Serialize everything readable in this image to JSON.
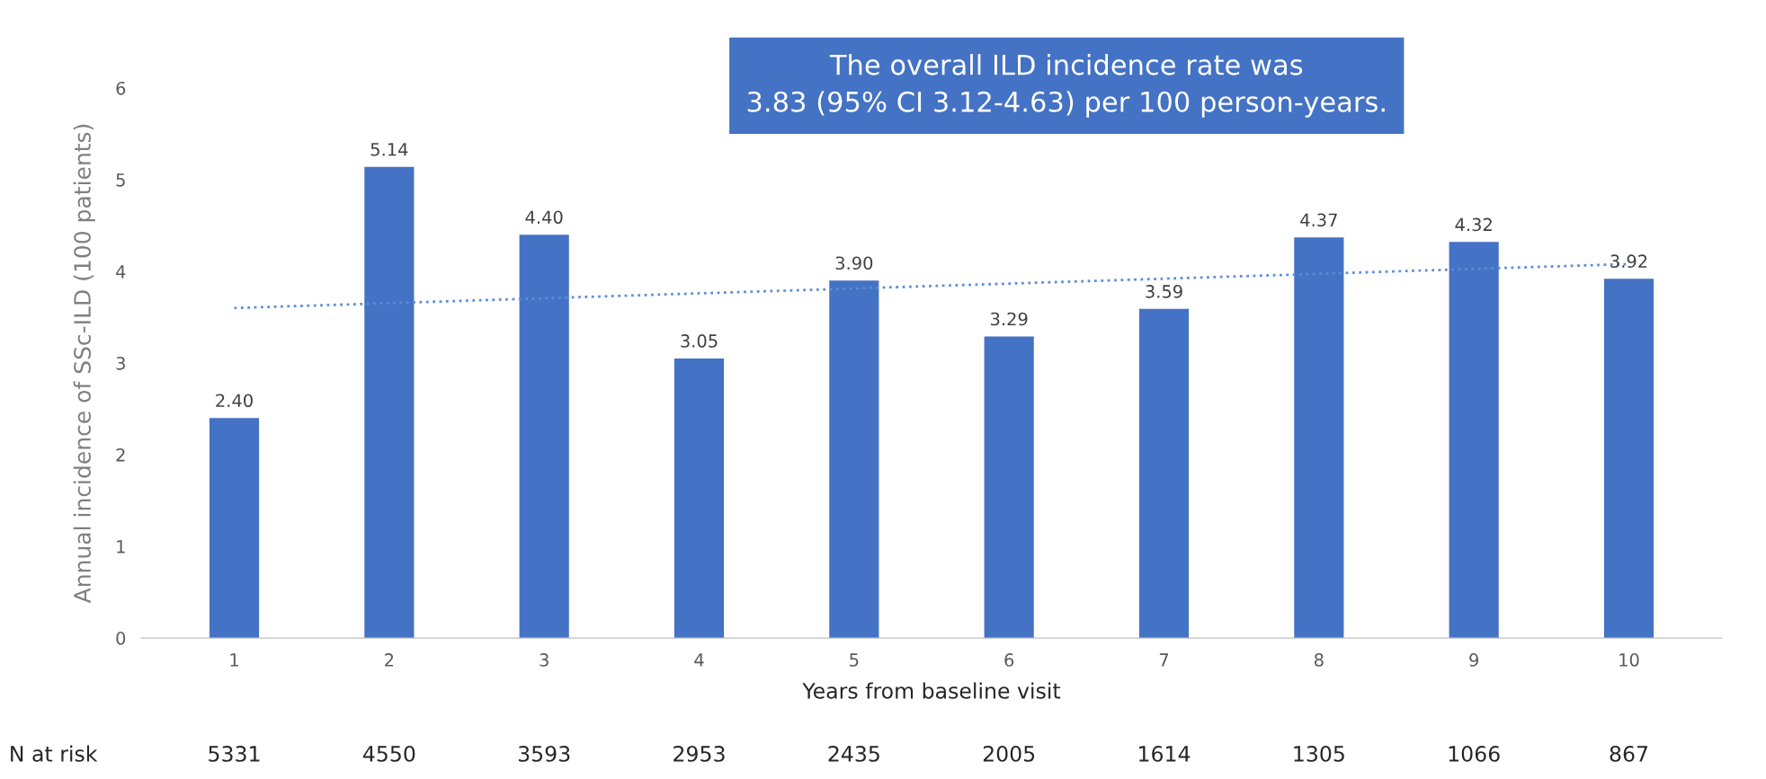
{
  "chart_data": {
    "type": "bar",
    "xlabel": "Years from baseline visit",
    "ylabel": "Annual incidence of SSc-ILD (100 patients)",
    "categories": [
      "1",
      "2",
      "3",
      "4",
      "5",
      "6",
      "7",
      "8",
      "9",
      "10"
    ],
    "series": [
      {
        "color": "#4472c4",
        "values": [
          2.4,
          5.14,
          4.4,
          3.05,
          3.9,
          3.29,
          3.59,
          4.37,
          4.32,
          3.92
        ],
        "value_labels": [
          "2.40",
          "5.14",
          "4.40",
          "3.05",
          "3.90",
          "3.29",
          "3.59",
          "4.37",
          "4.32",
          "3.92"
        ]
      },
      {
        "type": "line",
        "color": "#5b8fd4",
        "line_style": "dotted",
        "x": [
          "1",
          "10"
        ],
        "values": [
          3.6,
          4.08
        ]
      }
    ],
    "ylim": [
      0,
      6
    ],
    "yticks": [
      0,
      1,
      2,
      3,
      4,
      5,
      6
    ],
    "grid": false,
    "legend": false,
    "annotations": [
      "The overall ILD incidence rate was\n3.83 (95% CI 3.12-4.63) per 100 person-years.",
      "N at risk",
      "5331",
      "4550",
      "3593",
      "2953",
      "2435",
      "2005",
      "1614",
      "1305",
      "1066",
      "867"
    ]
  }
}
